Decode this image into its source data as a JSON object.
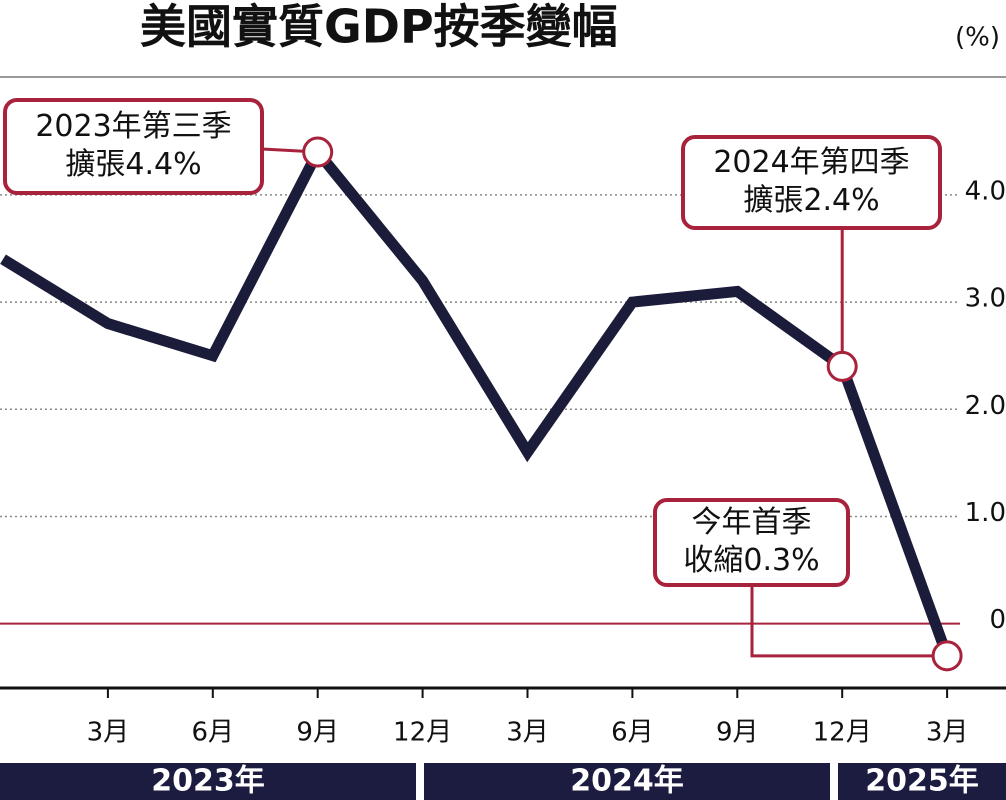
{
  "chart_data": {
    "type": "line",
    "title": "美國實質GDP按季變幅",
    "unit": "(%)",
    "categories": [
      null,
      "3月",
      "6月",
      "9月",
      "12月",
      "3月",
      "6月",
      "9月",
      "12月",
      "3月"
    ],
    "values": [
      3.4,
      2.8,
      2.5,
      4.4,
      3.2,
      1.6,
      3.0,
      3.1,
      2.4,
      -0.3
    ],
    "color": "#1b1b3a",
    "ylim": [
      -0.6,
      5.1
    ],
    "yticks": [
      0,
      {
        "value": 1,
        "label": "1.0"
      },
      {
        "value": 2,
        "label": "2.0"
      },
      {
        "value": 3,
        "label": "3.0"
      },
      {
        "value": 4,
        "label": "4.0"
      }
    ],
    "grid": true,
    "years": [
      "2023年",
      "2024年",
      "2025年"
    ],
    "annotations": [
      {
        "lines": [
          "2023年第三季",
          "擴張4.4%"
        ]
      },
      {
        "lines": [
          "2024年第四季",
          "擴張2.4%"
        ]
      },
      {
        "lines": [
          "今年首季",
          "收縮0.3%"
        ]
      }
    ]
  }
}
